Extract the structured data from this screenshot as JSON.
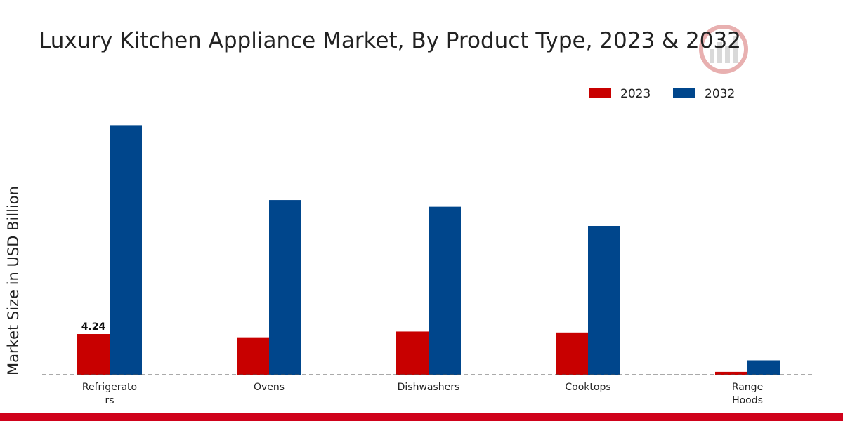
{
  "colors": {
    "series_2023": "#c80000",
    "series_2032": "#00468c",
    "footer": "#d0021b",
    "axis": "#555555",
    "watermark": "#d9d9d9",
    "watermark_accent": "#e8b0b0"
  },
  "watermark": {
    "icon": "chart-logo-icon"
  },
  "chart_data": {
    "type": "bar",
    "title": "Luxury Kitchen Appliance Market, By Product Type, 2023 & 2032",
    "xlabel": "",
    "ylabel": "Market Size in USD Billion",
    "categories": [
      "Refrigerators",
      "Ovens",
      "Dishwashers",
      "Cooktops",
      "Range Hoods"
    ],
    "category_lines": [
      [
        "Refrigerato",
        "rs"
      ],
      [
        "Ovens"
      ],
      [
        "Dishwashers"
      ],
      [
        "Cooktops"
      ],
      [
        "Range",
        "Hoods"
      ]
    ],
    "series": [
      {
        "name": "2023",
        "values": [
          4.24,
          3.9,
          4.5,
          4.4,
          0.3
        ],
        "data_labels": [
          "4.24",
          null,
          null,
          null,
          null
        ]
      },
      {
        "name": "2032",
        "values": [
          26.0,
          18.2,
          17.5,
          15.5,
          1.5
        ]
      }
    ],
    "ylim": [
      0,
      31
    ],
    "grid": false,
    "legend": {
      "position": "top-right",
      "entries": [
        "2023",
        "2032"
      ]
    }
  }
}
